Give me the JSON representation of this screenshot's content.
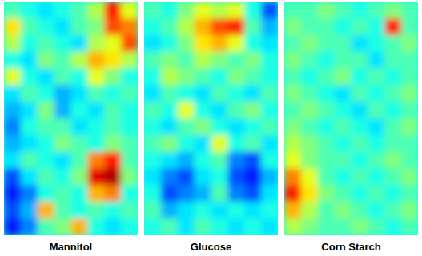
{
  "chart_data": [
    {
      "type": "heatmap",
      "title": "Mannitol",
      "tick_labels": false,
      "color_range": [
        0,
        1
      ],
      "cells": [
        [
          0.45,
          0.4,
          0.35,
          0.4,
          0.45,
          0.55,
          0.85,
          0.6
        ],
        [
          0.65,
          0.45,
          0.4,
          0.35,
          0.45,
          0.5,
          0.8,
          0.75
        ],
        [
          0.55,
          0.4,
          0.45,
          0.4,
          0.35,
          0.55,
          0.6,
          0.8
        ],
        [
          0.4,
          0.35,
          0.5,
          0.45,
          0.55,
          0.7,
          0.65,
          0.55
        ],
        [
          0.6,
          0.4,
          0.35,
          0.45,
          0.4,
          0.6,
          0.5,
          0.4
        ],
        [
          0.35,
          0.45,
          0.4,
          0.3,
          0.35,
          0.45,
          0.4,
          0.45
        ],
        [
          0.3,
          0.35,
          0.5,
          0.3,
          0.4,
          0.35,
          0.45,
          0.4
        ],
        [
          0.25,
          0.4,
          0.45,
          0.45,
          0.35,
          0.4,
          0.45,
          0.4
        ],
        [
          0.3,
          0.35,
          0.4,
          0.5,
          0.45,
          0.4,
          0.5,
          0.45
        ],
        [
          0.35,
          0.45,
          0.4,
          0.35,
          0.45,
          0.75,
          0.85,
          0.45
        ],
        [
          0.2,
          0.35,
          0.45,
          0.4,
          0.5,
          0.9,
          0.95,
          0.5
        ],
        [
          0.15,
          0.25,
          0.4,
          0.45,
          0.4,
          0.7,
          0.75,
          0.4
        ],
        [
          0.2,
          0.3,
          0.7,
          0.45,
          0.4,
          0.45,
          0.4,
          0.45
        ],
        [
          0.15,
          0.25,
          0.45,
          0.5,
          0.7,
          0.4,
          0.35,
          0.4
        ]
      ]
    },
    {
      "type": "heatmap",
      "title": "Glucose",
      "tick_labels": false,
      "color_range": [
        0,
        1
      ],
      "cells": [
        [
          0.45,
          0.4,
          0.5,
          0.6,
          0.55,
          0.6,
          0.4,
          0.2
        ],
        [
          0.4,
          0.45,
          0.55,
          0.7,
          0.8,
          0.85,
          0.45,
          0.3
        ],
        [
          0.35,
          0.4,
          0.5,
          0.65,
          0.7,
          0.6,
          0.4,
          0.35
        ],
        [
          0.45,
          0.5,
          0.45,
          0.55,
          0.5,
          0.45,
          0.5,
          0.4
        ],
        [
          0.4,
          0.55,
          0.5,
          0.45,
          0.4,
          0.5,
          0.45,
          0.4
        ],
        [
          0.35,
          0.45,
          0.4,
          0.35,
          0.45,
          0.4,
          0.35,
          0.45
        ],
        [
          0.45,
          0.4,
          0.6,
          0.4,
          0.35,
          0.45,
          0.5,
          0.4
        ],
        [
          0.4,
          0.35,
          0.45,
          0.5,
          0.4,
          0.35,
          0.4,
          0.45
        ],
        [
          0.45,
          0.5,
          0.4,
          0.35,
          0.6,
          0.4,
          0.45,
          0.35
        ],
        [
          0.4,
          0.35,
          0.3,
          0.4,
          0.45,
          0.25,
          0.2,
          0.4
        ],
        [
          0.35,
          0.25,
          0.2,
          0.35,
          0.4,
          0.2,
          0.15,
          0.3
        ],
        [
          0.4,
          0.2,
          0.25,
          0.3,
          0.45,
          0.25,
          0.2,
          0.35
        ],
        [
          0.45,
          0.3,
          0.35,
          0.4,
          0.35,
          0.4,
          0.35,
          0.4
        ],
        [
          0.4,
          0.45,
          0.35,
          0.45,
          0.4,
          0.35,
          0.4,
          0.35
        ]
      ]
    },
    {
      "type": "heatmap",
      "title": "Corn Starch",
      "tick_labels": false,
      "color_range": [
        0,
        1
      ],
      "cells": [
        [
          0.45,
          0.45,
          0.5,
          0.45,
          0.4,
          0.45,
          0.5,
          0.45
        ],
        [
          0.5,
          0.45,
          0.45,
          0.4,
          0.45,
          0.4,
          0.85,
          0.45
        ],
        [
          0.45,
          0.5,
          0.45,
          0.45,
          0.35,
          0.4,
          0.45,
          0.5
        ],
        [
          0.5,
          0.45,
          0.4,
          0.45,
          0.45,
          0.35,
          0.45,
          0.45
        ],
        [
          0.45,
          0.4,
          0.45,
          0.5,
          0.4,
          0.45,
          0.4,
          0.45
        ],
        [
          0.5,
          0.45,
          0.4,
          0.35,
          0.45,
          0.4,
          0.45,
          0.5
        ],
        [
          0.45,
          0.5,
          0.45,
          0.4,
          0.35,
          0.45,
          0.4,
          0.45
        ],
        [
          0.5,
          0.45,
          0.4,
          0.45,
          0.4,
          0.35,
          0.45,
          0.5
        ],
        [
          0.55,
          0.5,
          0.45,
          0.4,
          0.45,
          0.4,
          0.45,
          0.45
        ],
        [
          0.6,
          0.5,
          0.45,
          0.45,
          0.4,
          0.45,
          0.5,
          0.45
        ],
        [
          0.75,
          0.6,
          0.45,
          0.4,
          0.45,
          0.4,
          0.45,
          0.5
        ],
        [
          0.85,
          0.65,
          0.5,
          0.45,
          0.4,
          0.45,
          0.4,
          0.45
        ],
        [
          0.7,
          0.55,
          0.45,
          0.5,
          0.45,
          0.4,
          0.45,
          0.5
        ],
        [
          0.55,
          0.5,
          0.45,
          0.45,
          0.5,
          0.45,
          0.4,
          0.45
        ]
      ]
    }
  ]
}
